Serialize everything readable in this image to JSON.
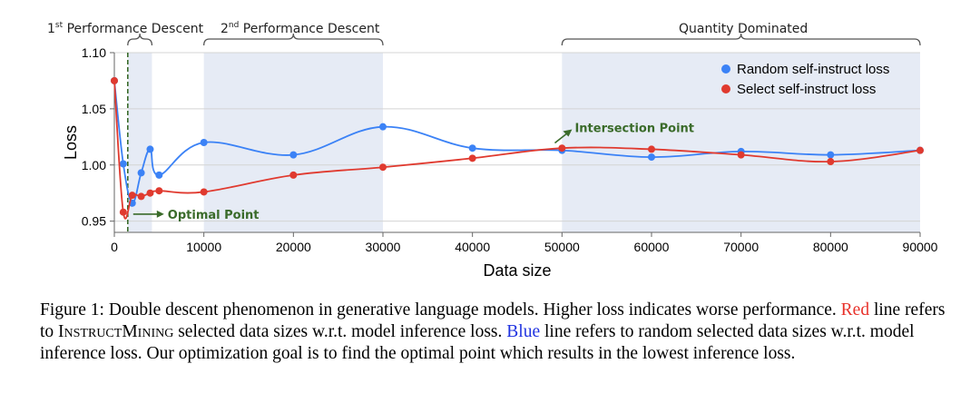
{
  "chart_data": {
    "type": "line",
    "xlabel": "Data size",
    "ylabel": "Loss",
    "xlim": [
      0,
      90000
    ],
    "ylim": [
      0.94,
      1.1
    ],
    "x_ticks": [
      0,
      10000,
      20000,
      30000,
      40000,
      50000,
      60000,
      70000,
      80000,
      90000
    ],
    "y_ticks": [
      0.95,
      1.0,
      1.05,
      1.1
    ],
    "y_tick_labels": [
      "0.95",
      "1.00",
      "1.05",
      "1.10"
    ],
    "grid": "horizontal",
    "legend_position": "top-right",
    "series": [
      {
        "name": "Random self-instruct loss",
        "color": "#3b82f6",
        "points": [
          [
            0,
            1.075
          ],
          [
            1000,
            1.001
          ],
          [
            2000,
            0.966
          ],
          [
            3000,
            0.993
          ],
          [
            4000,
            1.014
          ],
          [
            5000,
            0.991
          ],
          [
            10000,
            1.02
          ],
          [
            20000,
            1.009
          ],
          [
            30000,
            1.034
          ],
          [
            40000,
            1.015
          ],
          [
            50000,
            1.013
          ],
          [
            60000,
            1.007
          ],
          [
            70000,
            1.012
          ],
          [
            80000,
            1.009
          ],
          [
            90000,
            1.013
          ]
        ]
      },
      {
        "name": "Select self-instruct loss",
        "color": "#e03a2f",
        "points": [
          [
            0,
            1.075
          ],
          [
            1000,
            0.958
          ],
          [
            2000,
            0.973
          ],
          [
            3000,
            0.972
          ],
          [
            4000,
            0.975
          ],
          [
            5000,
            0.977
          ],
          [
            10000,
            0.976
          ],
          [
            20000,
            0.991
          ],
          [
            30000,
            0.998
          ],
          [
            40000,
            1.006
          ],
          [
            50000,
            1.015
          ],
          [
            60000,
            1.014
          ],
          [
            70000,
            1.009
          ],
          [
            80000,
            1.003
          ],
          [
            90000,
            1.013
          ]
        ]
      }
    ],
    "regions": [
      {
        "label_sup": "st",
        "label_main": "1",
        "label_rest": "Performance Descent",
        "x_start": 1500,
        "x_end": 4200
      },
      {
        "label_sup": "nd",
        "label_main": "2",
        "label_rest": "Performance Descent",
        "x_start": 10000,
        "x_end": 30000
      },
      {
        "label_sup": "",
        "label_main": "",
        "label_rest": "Quantity Dominated",
        "x_start": 50000,
        "x_end": 90000
      }
    ],
    "annotations": {
      "optimal_point": {
        "label": "Optimal Point",
        "x": 1500,
        "y": 0.953
      },
      "intersection_point": {
        "label": "Intersection Point",
        "x": 49000,
        "y": 1.018
      }
    },
    "shade_color": "#e6ebf5",
    "annotation_color": "#3a6b2a"
  },
  "caption": {
    "prefix": "Figure 1: Double descent phenomenon in generative language models. Higher loss indicates worse performance. ",
    "red_word": "Red",
    "mid1": " line refers to ",
    "method_name": "InstructMining",
    "mid2": " selected data sizes w.r.t. model inference loss. ",
    "blue_word": "Blue",
    "suffix": " line refers to random selected data sizes w.r.t. model inference loss. Our optimization goal is to find the optimal point which results in the lowest inference loss."
  }
}
